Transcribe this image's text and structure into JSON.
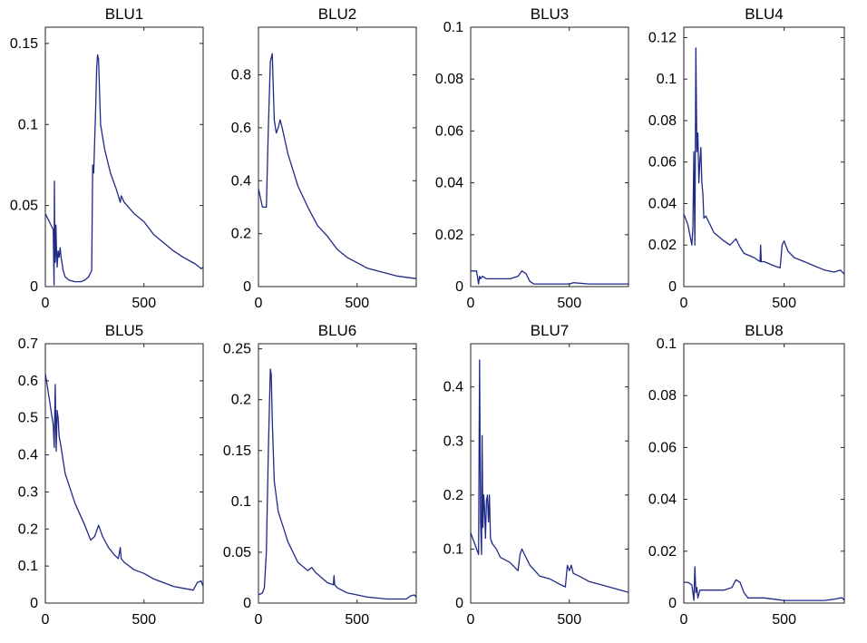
{
  "figure": {
    "line_color": "#1f2a86",
    "background": "#ffffff"
  },
  "chart_data": [
    {
      "type": "line",
      "title": "BLU1",
      "xlim": [
        0,
        800
      ],
      "ylim": [
        0,
        0.16
      ],
      "xticks": [
        "0",
        "500"
      ],
      "yticks": [
        "0",
        "0.05",
        "0.1",
        "0.15"
      ],
      "xtick_values": [
        0,
        500
      ],
      "ytick_values": [
        0,
        0.05,
        0.1,
        0.15
      ],
      "series": [
        {
          "x": [
            0,
            20,
            40,
            44,
            46,
            48,
            50,
            52,
            54,
            56,
            58,
            60,
            65,
            70,
            75,
            80,
            90,
            100,
            120,
            150,
            180,
            200,
            220,
            235,
            240,
            245,
            250,
            255,
            260,
            265,
            270,
            280,
            300,
            330,
            360,
            380,
            385,
            400,
            450,
            500,
            550,
            600,
            650,
            700,
            760,
            790,
            800
          ],
          "y": [
            0.045,
            0.04,
            0.035,
            0.001,
            0.065,
            0.03,
            0.015,
            0.02,
            0.038,
            0.025,
            0.02,
            0.012,
            0.022,
            0.018,
            0.024,
            0.018,
            0.01,
            0.006,
            0.004,
            0.003,
            0.003,
            0.004,
            0.006,
            0.01,
            0.075,
            0.07,
            0.09,
            0.11,
            0.135,
            0.143,
            0.14,
            0.1,
            0.085,
            0.07,
            0.06,
            0.052,
            0.056,
            0.052,
            0.045,
            0.04,
            0.032,
            0.027,
            0.022,
            0.018,
            0.014,
            0.011,
            0.012
          ]
        }
      ]
    },
    {
      "type": "line",
      "title": "BLU2",
      "xlim": [
        0,
        800
      ],
      "ylim": [
        0,
        0.98
      ],
      "xticks": [
        "0",
        "500"
      ],
      "yticks": [
        "0",
        "0.2",
        "0.4",
        "0.6",
        "0.8"
      ],
      "xtick_values": [
        0,
        500
      ],
      "ytick_values": [
        0,
        0.2,
        0.4,
        0.6,
        0.8
      ],
      "series": [
        {
          "x": [
            0,
            20,
            40,
            50,
            60,
            70,
            80,
            90,
            100,
            110,
            120,
            150,
            200,
            250,
            300,
            350,
            380,
            400,
            450,
            500,
            550,
            600,
            650,
            700,
            750,
            800
          ],
          "y": [
            0.37,
            0.3,
            0.3,
            0.6,
            0.85,
            0.88,
            0.63,
            0.58,
            0.6,
            0.63,
            0.6,
            0.5,
            0.38,
            0.3,
            0.23,
            0.19,
            0.16,
            0.14,
            0.11,
            0.09,
            0.07,
            0.06,
            0.05,
            0.04,
            0.035,
            0.03
          ]
        }
      ]
    },
    {
      "type": "line",
      "title": "BLU3",
      "xlim": [
        0,
        800
      ],
      "ylim": [
        0,
        0.1
      ],
      "xticks": [
        "0",
        "500"
      ],
      "yticks": [
        "0",
        "0.02",
        "0.04",
        "0.06",
        "0.08",
        "0.1"
      ],
      "xtick_values": [
        0,
        500
      ],
      "ytick_values": [
        0,
        0.02,
        0.04,
        0.06,
        0.08,
        0.1
      ],
      "series": [
        {
          "x": [
            0,
            30,
            40,
            45,
            50,
            60,
            80,
            100,
            150,
            200,
            240,
            260,
            280,
            300,
            320,
            400,
            500,
            520,
            600,
            700,
            800
          ],
          "y": [
            0.006,
            0.006,
            0.001,
            0.004,
            0.003,
            0.004,
            0.003,
            0.003,
            0.003,
            0.003,
            0.004,
            0.006,
            0.005,
            0.002,
            0.001,
            0.001,
            0.001,
            0.0015,
            0.001,
            0.001,
            0.001
          ]
        }
      ]
    },
    {
      "type": "line",
      "title": "BLU4",
      "xlim": [
        0,
        800
      ],
      "ylim": [
        0,
        0.125
      ],
      "xticks": [
        "0",
        "500"
      ],
      "yticks": [
        "0",
        "0.02",
        "0.04",
        "0.06",
        "0.08",
        "0.1",
        "0.12"
      ],
      "xtick_values": [
        0,
        500
      ],
      "ytick_values": [
        0,
        0.02,
        0.04,
        0.06,
        0.08,
        0.1,
        0.12
      ],
      "series": [
        {
          "x": [
            0,
            20,
            40,
            45,
            50,
            55,
            60,
            65,
            70,
            75,
            80,
            85,
            90,
            95,
            100,
            110,
            130,
            150,
            200,
            230,
            260,
            280,
            300,
            350,
            380,
            383,
            386,
            400,
            450,
            480,
            490,
            500,
            520,
            550,
            600,
            650,
            700,
            750,
            780,
            800
          ],
          "y": [
            0.035,
            0.03,
            0.02,
            0.028,
            0.065,
            0.02,
            0.115,
            0.065,
            0.074,
            0.05,
            0.06,
            0.067,
            0.05,
            0.045,
            0.033,
            0.034,
            0.03,
            0.026,
            0.022,
            0.02,
            0.023,
            0.019,
            0.016,
            0.014,
            0.012,
            0.02,
            0.012,
            0.012,
            0.01,
            0.009,
            0.02,
            0.022,
            0.017,
            0.014,
            0.012,
            0.01,
            0.008,
            0.007,
            0.008,
            0.006
          ]
        }
      ]
    },
    {
      "type": "line",
      "title": "BLU5",
      "xlim": [
        0,
        800
      ],
      "ylim": [
        0,
        0.7
      ],
      "xticks": [
        "0",
        "500"
      ],
      "yticks": [
        "0",
        "0.1",
        "0.2",
        "0.3",
        "0.4",
        "0.5",
        "0.6",
        "0.7"
      ],
      "xtick_values": [
        0,
        500
      ],
      "ytick_values": [
        0,
        0.1,
        0.2,
        0.3,
        0.4,
        0.5,
        0.6,
        0.7
      ],
      "series": [
        {
          "x": [
            0,
            20,
            40,
            45,
            50,
            55,
            60,
            65,
            70,
            80,
            100,
            150,
            200,
            230,
            250,
            270,
            290,
            320,
            350,
            370,
            380,
            385,
            400,
            450,
            500,
            550,
            600,
            650,
            700,
            750,
            770,
            790,
            800
          ],
          "y": [
            0.62,
            0.55,
            0.48,
            0.42,
            0.59,
            0.41,
            0.52,
            0.5,
            0.45,
            0.42,
            0.35,
            0.27,
            0.21,
            0.17,
            0.18,
            0.21,
            0.18,
            0.15,
            0.13,
            0.12,
            0.15,
            0.12,
            0.11,
            0.09,
            0.08,
            0.065,
            0.055,
            0.045,
            0.04,
            0.035,
            0.055,
            0.06,
            0.045
          ]
        }
      ]
    },
    {
      "type": "line",
      "title": "BLU6",
      "xlim": [
        0,
        800
      ],
      "ylim": [
        0,
        0.255
      ],
      "xticks": [
        "0",
        "500"
      ],
      "yticks": [
        "0",
        "0.05",
        "0.1",
        "0.15",
        "0.2",
        "0.25"
      ],
      "xtick_values": [
        0,
        500
      ],
      "ytick_values": [
        0,
        0.05,
        0.1,
        0.15,
        0.2,
        0.25
      ],
      "series": [
        {
          "x": [
            0,
            20,
            30,
            40,
            50,
            60,
            65,
            70,
            80,
            100,
            150,
            200,
            250,
            270,
            290,
            320,
            350,
            380,
            383,
            386,
            400,
            450,
            500,
            550,
            600,
            650,
            700,
            750,
            770,
            790,
            800
          ],
          "y": [
            0.008,
            0.01,
            0.015,
            0.05,
            0.15,
            0.23,
            0.225,
            0.18,
            0.12,
            0.09,
            0.06,
            0.04,
            0.032,
            0.035,
            0.03,
            0.025,
            0.02,
            0.018,
            0.027,
            0.018,
            0.015,
            0.01,
            0.008,
            0.006,
            0.005,
            0.004,
            0.004,
            0.004,
            0.007,
            0.008,
            0.006
          ]
        }
      ]
    },
    {
      "type": "line",
      "title": "BLU7",
      "xlim": [
        0,
        800
      ],
      "ylim": [
        0,
        0.48
      ],
      "xticks": [
        "0",
        "500"
      ],
      "yticks": [
        "0",
        "0.1",
        "0.2",
        "0.3",
        "0.4"
      ],
      "xtick_values": [
        0,
        500
      ],
      "ytick_values": [
        0,
        0.1,
        0.2,
        0.3,
        0.4
      ],
      "series": [
        {
          "x": [
            0,
            20,
            40,
            45,
            50,
            55,
            58,
            62,
            66,
            70,
            75,
            80,
            85,
            90,
            95,
            100,
            110,
            130,
            150,
            200,
            240,
            250,
            260,
            280,
            300,
            350,
            400,
            450,
            480,
            490,
            500,
            510,
            520,
            550,
            600,
            650,
            700,
            750,
            800
          ],
          "y": [
            0.13,
            0.11,
            0.09,
            0.45,
            0.15,
            0.09,
            0.31,
            0.14,
            0.2,
            0.18,
            0.12,
            0.19,
            0.2,
            0.15,
            0.2,
            0.12,
            0.11,
            0.1,
            0.085,
            0.075,
            0.06,
            0.09,
            0.1,
            0.085,
            0.07,
            0.05,
            0.045,
            0.035,
            0.03,
            0.07,
            0.06,
            0.07,
            0.055,
            0.05,
            0.04,
            0.035,
            0.03,
            0.025,
            0.02
          ]
        }
      ]
    },
    {
      "type": "line",
      "title": "BLU8",
      "xlim": [
        0,
        800
      ],
      "ylim": [
        0,
        0.1
      ],
      "xticks": [
        "0",
        "500"
      ],
      "yticks": [
        "0",
        "0.02",
        "0.04",
        "0.06",
        "0.08",
        "0.1"
      ],
      "xtick_values": [
        0,
        500
      ],
      "ytick_values": [
        0,
        0.02,
        0.04,
        0.06,
        0.08,
        0.1
      ],
      "series": [
        {
          "x": [
            0,
            20,
            40,
            50,
            55,
            60,
            65,
            70,
            80,
            100,
            150,
            200,
            240,
            260,
            280,
            300,
            320,
            350,
            400,
            450,
            500,
            550,
            600,
            650,
            700,
            750,
            780,
            790,
            800
          ],
          "y": [
            0.008,
            0.008,
            0.007,
            0.001,
            0.014,
            0.004,
            0.006,
            0.002,
            0.005,
            0.005,
            0.005,
            0.005,
            0.006,
            0.009,
            0.008,
            0.004,
            0.002,
            0.002,
            0.002,
            0.0015,
            0.001,
            0.001,
            0.001,
            0.001,
            0.001,
            0.0015,
            0.002,
            0.002,
            0.001
          ]
        }
      ]
    }
  ]
}
